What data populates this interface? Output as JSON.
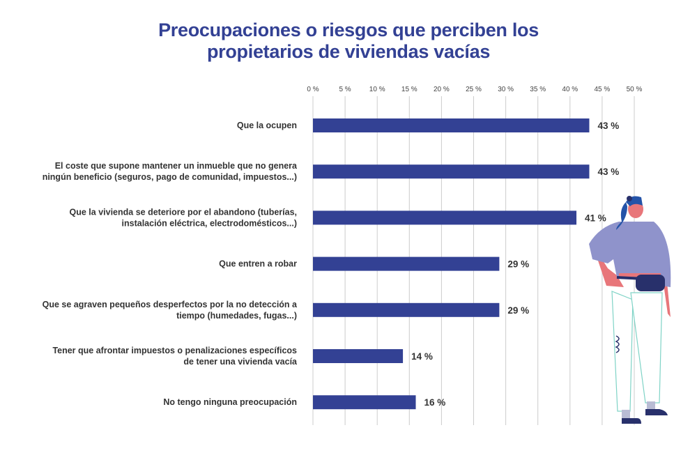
{
  "chart_data": {
    "type": "bar",
    "orientation": "horizontal",
    "title": "Preocupaciones o riesgos que perciben los propietarios de viviendas vacías",
    "title_lines": [
      "Preocupaciones o riesgos que perciben los",
      "propietarios de viviendas vacías"
    ],
    "categories": [
      [
        "Que la ocupen"
      ],
      [
        "El coste que supone mantener un inmueble que no genera",
        "ningún beneficio (seguros, pago de comunidad, impuestos...)"
      ],
      [
        "Que la vivienda se deteriore por el abandono (tuberías,",
        "instalación eléctrica, electrodomésticos...)"
      ],
      [
        "Que entren a robar"
      ],
      [
        "Que se agraven pequeños desperfectos por la no detección a",
        "tiempo (humedades, fugas...)"
      ],
      [
        "Tener que afrontar impuestos o penalizaciones específicos",
        "de tener una vivienda vacía"
      ],
      [
        "No tengo ninguna preocupación"
      ]
    ],
    "values": [
      43,
      43,
      41,
      29,
      29,
      14,
      16
    ],
    "value_labels": [
      "43 %",
      "43 %",
      "41 %",
      "29 %",
      "29 %",
      "14 %",
      "16 %"
    ],
    "xlim": [
      0,
      50
    ],
    "xticks": [
      0,
      5,
      10,
      15,
      20,
      25,
      30,
      35,
      40,
      45,
      50
    ],
    "xtick_labels": [
      "0 %",
      "5 %",
      "10 %",
      "15 %",
      "20 %",
      "25 %",
      "30 %",
      "35 %",
      "40 %",
      "45 %",
      "50 %"
    ],
    "xaxis_position": "top",
    "grid": true,
    "colors": {
      "bar": "#334194",
      "title": "#334194",
      "grid": "#cccccc"
    }
  }
}
